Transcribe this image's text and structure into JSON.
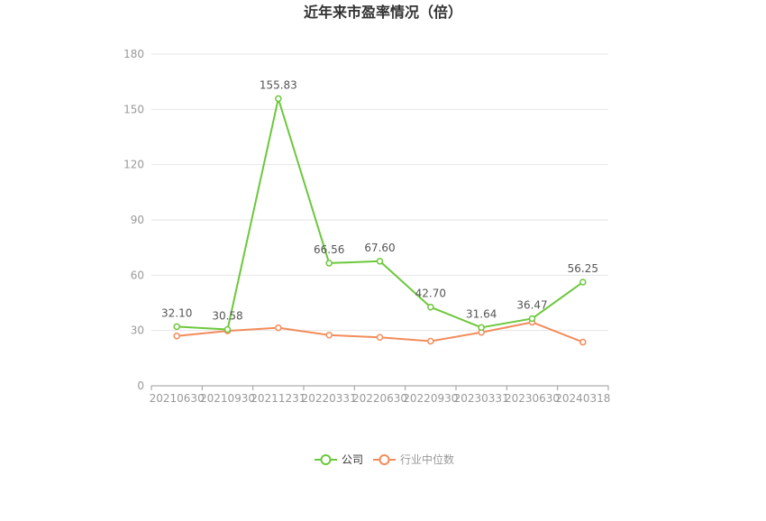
{
  "chart_data": {
    "type": "line",
    "title": "近年来市盈率情况（倍）",
    "xlabel": "",
    "ylabel": "",
    "categories": [
      "20210630",
      "20210930",
      "20211231",
      "20220331",
      "20220630",
      "20220930",
      "20230331",
      "20230630",
      "20240318"
    ],
    "ylim": [
      0,
      180
    ],
    "yticks": [
      0,
      30,
      60,
      90,
      120,
      150,
      180
    ],
    "grid": true,
    "legend": "bottom-center",
    "series": [
      {
        "name": "公司",
        "color": "#6cc83c",
        "values": [
          32.1,
          30.58,
          155.83,
          66.56,
          67.6,
          42.7,
          31.64,
          36.47,
          56.25
        ],
        "labels": [
          "32.10",
          "30.58",
          "155.83",
          "66.56",
          "67.60",
          "42.70",
          "31.64",
          "36.47",
          "56.25"
        ]
      },
      {
        "name": "行业中位数",
        "color": "#f28c5a",
        "values": [
          27.0,
          29.8,
          31.5,
          27.5,
          26.3,
          24.2,
          29.0,
          34.5,
          23.7
        ]
      }
    ]
  }
}
